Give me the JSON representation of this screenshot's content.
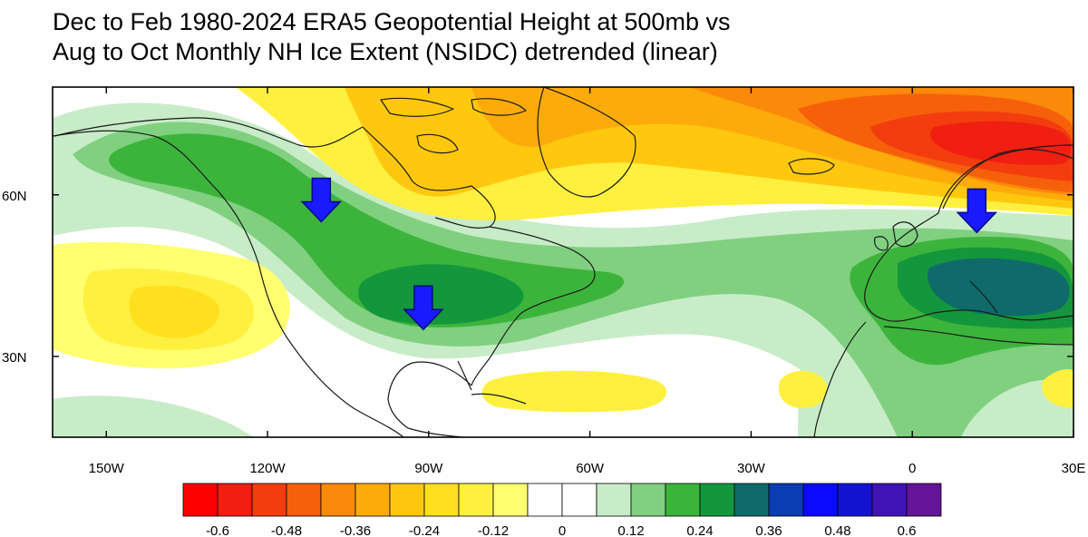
{
  "title": {
    "line1": "Dec to Feb 1980-2024 ERA5 Geopotential Height at 500mb vs",
    "line2": "Aug to Oct Monthly NH Ice Extent (NSIDC) detrended (linear)"
  },
  "axes": {
    "lon_ticks": [
      {
        "value": -150,
        "label": "150W"
      },
      {
        "value": -120,
        "label": "120W"
      },
      {
        "value": -90,
        "label": "90W"
      },
      {
        "value": -60,
        "label": "60W"
      },
      {
        "value": -30,
        "label": "30W"
      },
      {
        "value": 0,
        "label": "0"
      },
      {
        "value": 30,
        "label": "30E"
      }
    ],
    "lat_ticks": [
      {
        "value": 60,
        "label": "60N"
      },
      {
        "value": 30,
        "label": "30N"
      }
    ],
    "lon_range": [
      -160,
      30
    ],
    "lat_range": [
      15,
      80
    ]
  },
  "colorbar": {
    "colors": [
      "#ff0000",
      "#f01f12",
      "#f33d0e",
      "#f7600b",
      "#fa8a0a",
      "#fdab0a",
      "#ffc80f",
      "#ffe01e",
      "#fff040",
      "#ffff70",
      "#ffffff",
      "#ffffff",
      "#c8ecc8",
      "#80d080",
      "#3cb43c",
      "#14963c",
      "#0f6a6a",
      "#0a3cb4",
      "#0a0aff",
      "#1414d0",
      "#4014b4",
      "#641496"
    ],
    "tick_labels": [
      "-0.6",
      "-0.48",
      "-0.36",
      "-0.24",
      "-0.12",
      "0",
      "0.12",
      "0.24",
      "0.36",
      "0.48",
      "0.6"
    ]
  },
  "arrows": [
    {
      "name": "arrow-western-canada",
      "lon": -110,
      "lat": 55
    },
    {
      "name": "arrow-gulf-coast",
      "lon": -91,
      "lat": 35
    },
    {
      "name": "arrow-central-europe",
      "lon": 12,
      "lat": 53
    }
  ],
  "arrow_color": "#1a1aff"
}
